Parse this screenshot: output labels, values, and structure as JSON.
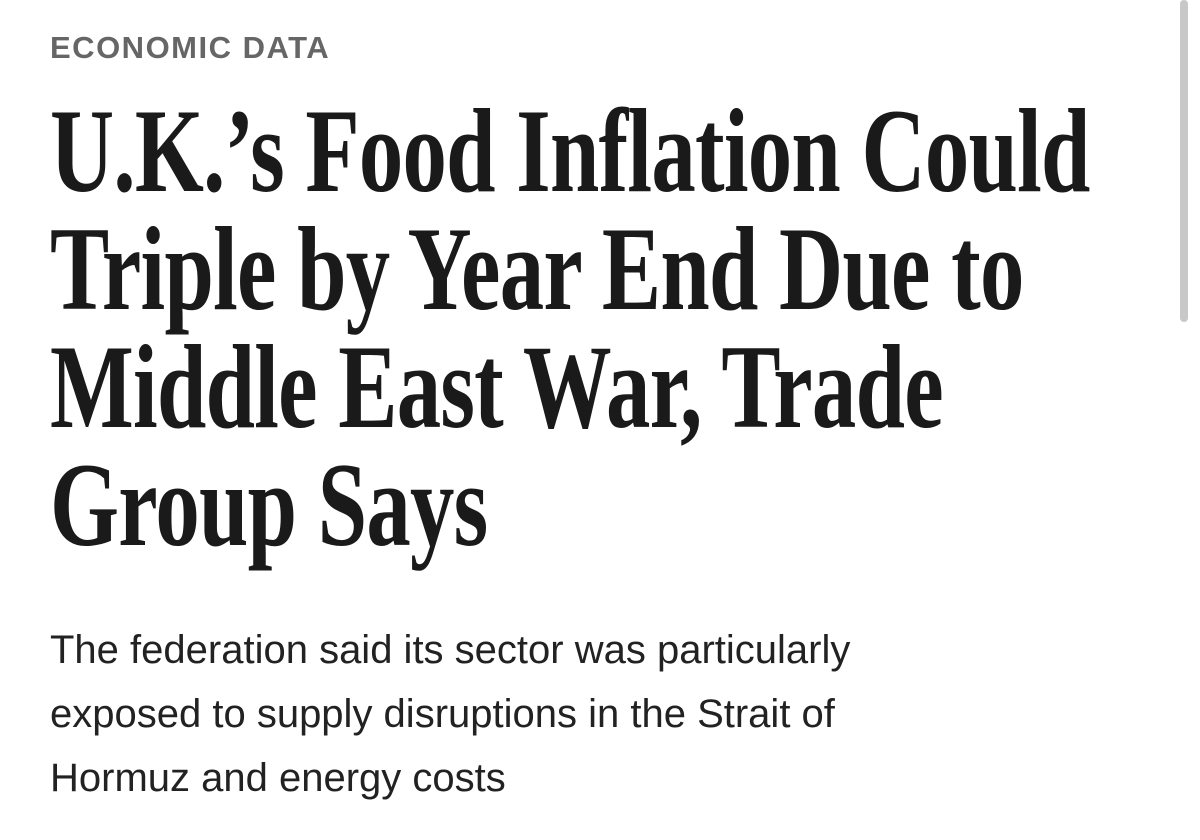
{
  "section": "ECONOMIC DATA",
  "headline": {
    "lines": [
      "U.K.’s Food Inflation Could",
      "Triple by Year End Due to",
      "Middle East War, Trade",
      "Group Says"
    ]
  },
  "summary": {
    "lines": [
      "The federation said its sector was particularly",
      "exposed to supply disruptions in the Strait of",
      "Hormuz and energy costs"
    ]
  }
}
